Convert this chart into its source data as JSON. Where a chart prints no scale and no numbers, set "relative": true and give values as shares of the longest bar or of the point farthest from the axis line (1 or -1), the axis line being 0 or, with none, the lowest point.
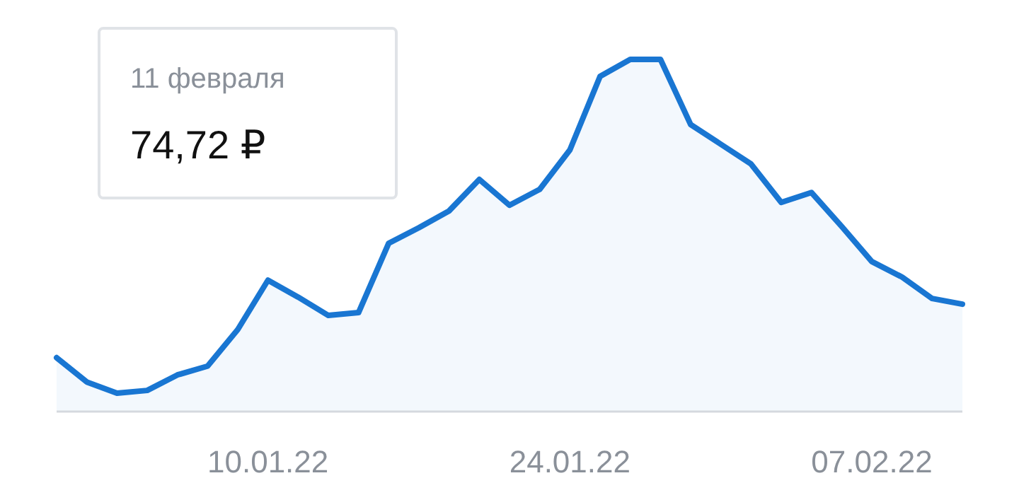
{
  "chart_data": {
    "type": "area",
    "relative": true,
    "color": "#1976d2",
    "categories": [
      null,
      null,
      null,
      null,
      null,
      null,
      null,
      "10.01.22",
      null,
      null,
      null,
      null,
      null,
      null,
      null,
      null,
      null,
      "24.01.22",
      null,
      null,
      null,
      null,
      null,
      null,
      null,
      null,
      null,
      "07.02.22",
      null,
      null,
      null
    ],
    "values": [
      0.153,
      0.084,
      0.052,
      0.06,
      0.104,
      0.129,
      0.233,
      0.373,
      0.325,
      0.273,
      0.281,
      0.478,
      0.522,
      0.57,
      0.659,
      0.586,
      0.631,
      0.743,
      0.952,
      1,
      1,
      0.815,
      0.759,
      0.703,
      0.594,
      0.622,
      0.526,
      0.426,
      0.382,
      0.321,
      0.305
    ],
    "annotations": [
      "11 февраля",
      "74,72 ₽"
    ]
  }
}
